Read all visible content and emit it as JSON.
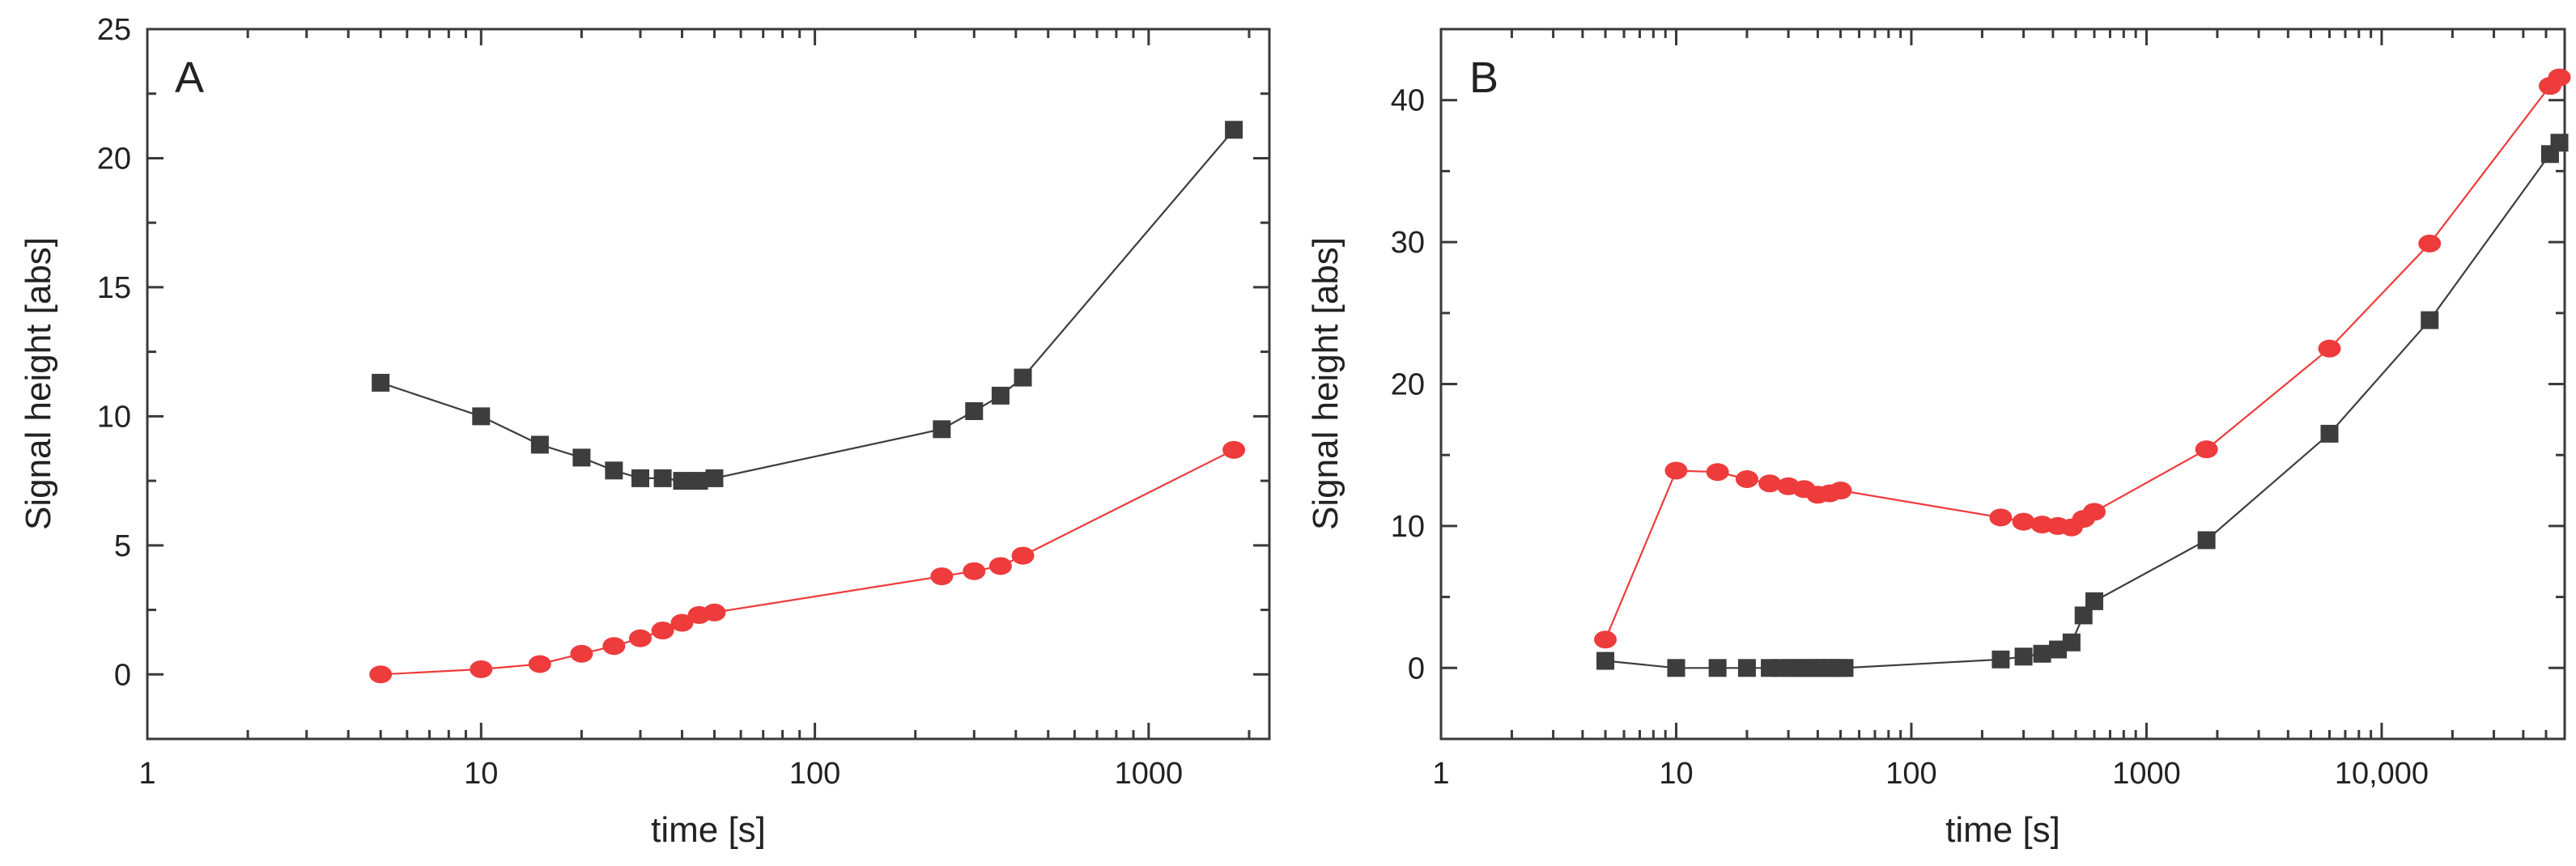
{
  "chart_data": [
    {
      "type": "line",
      "panel": "A",
      "title": "",
      "xlabel": "time [s]",
      "ylabel": "Signal height [abs]",
      "xscale": "log",
      "xlim": [
        1,
        2300
      ],
      "ylim": [
        -2.5,
        25
      ],
      "xticks": [
        1,
        10,
        100,
        1000
      ],
      "xtick_labels": [
        "1",
        "10",
        "100",
        "1000"
      ],
      "yticks": [
        0,
        5,
        10,
        15,
        20,
        25
      ],
      "ytick_labels": [
        "0",
        "5",
        "10",
        "15",
        "20",
        "25"
      ],
      "grid": false,
      "legend": "none",
      "series": [
        {
          "name": "black squares",
          "color": "#3d3d3d",
          "marker": "square",
          "x": [
            5,
            10,
            15,
            20,
            25,
            30,
            35,
            40,
            45,
            50,
            240,
            300,
            360,
            420,
            1800
          ],
          "y": [
            11.3,
            10.0,
            8.9,
            8.4,
            7.9,
            7.6,
            7.6,
            7.5,
            7.5,
            7.6,
            9.5,
            10.2,
            10.8,
            11.5,
            21.1
          ]
        },
        {
          "name": "red circles",
          "color": "#ee3b3b",
          "marker": "circle",
          "x": [
            5,
            10,
            15,
            20,
            25,
            30,
            35,
            40,
            45,
            50,
            240,
            300,
            360,
            420,
            1800
          ],
          "y": [
            0.0,
            0.2,
            0.4,
            0.8,
            1.1,
            1.4,
            1.7,
            2.0,
            2.3,
            2.4,
            3.8,
            4.0,
            4.2,
            4.6,
            8.7
          ]
        }
      ]
    },
    {
      "type": "line",
      "panel": "B",
      "title": "",
      "xlabel": "time [s]",
      "ylabel": "Signal height [abs]",
      "xscale": "log",
      "xlim": [
        1,
        60000
      ],
      "ylim": [
        -5,
        45
      ],
      "xticks": [
        1,
        10,
        100,
        1000,
        10000
      ],
      "xtick_labels": [
        "1",
        "10",
        "100",
        "1000",
        "10,000"
      ],
      "yticks": [
        0,
        10,
        20,
        30,
        40
      ],
      "ytick_labels": [
        "0",
        "10",
        "20",
        "30",
        "40"
      ],
      "grid": false,
      "legend": "none",
      "series": [
        {
          "name": "black squares",
          "color": "#3d3d3d",
          "marker": "square",
          "x": [
            5,
            10,
            15,
            20,
            25,
            28,
            31,
            34,
            37,
            40,
            43,
            46,
            49,
            52,
            240,
            300,
            360,
            420,
            480,
            540,
            600,
            1800,
            6000,
            16000,
            52000,
            57000
          ],
          "y": [
            0.5,
            0.0,
            0.0,
            0.0,
            0.0,
            0.0,
            0.0,
            0.0,
            0.0,
            0.0,
            0.0,
            0.0,
            0.0,
            0.0,
            0.6,
            0.8,
            1.0,
            1.3,
            1.8,
            3.7,
            4.7,
            9.0,
            16.5,
            24.5,
            36.2,
            37.0
          ]
        },
        {
          "name": "red circles",
          "color": "#ee3b3b",
          "marker": "circle",
          "x": [
            5,
            10,
            15,
            20,
            25,
            30,
            35,
            40,
            45,
            50,
            240,
            300,
            360,
            420,
            480,
            540,
            600,
            1800,
            6000,
            16000,
            52000,
            57000
          ],
          "y": [
            2.0,
            13.9,
            13.8,
            13.3,
            13.0,
            12.8,
            12.6,
            12.2,
            12.3,
            12.5,
            10.6,
            10.3,
            10.1,
            10.0,
            9.9,
            10.5,
            11.0,
            15.4,
            22.5,
            29.9,
            41.0,
            41.6
          ]
        }
      ]
    }
  ]
}
